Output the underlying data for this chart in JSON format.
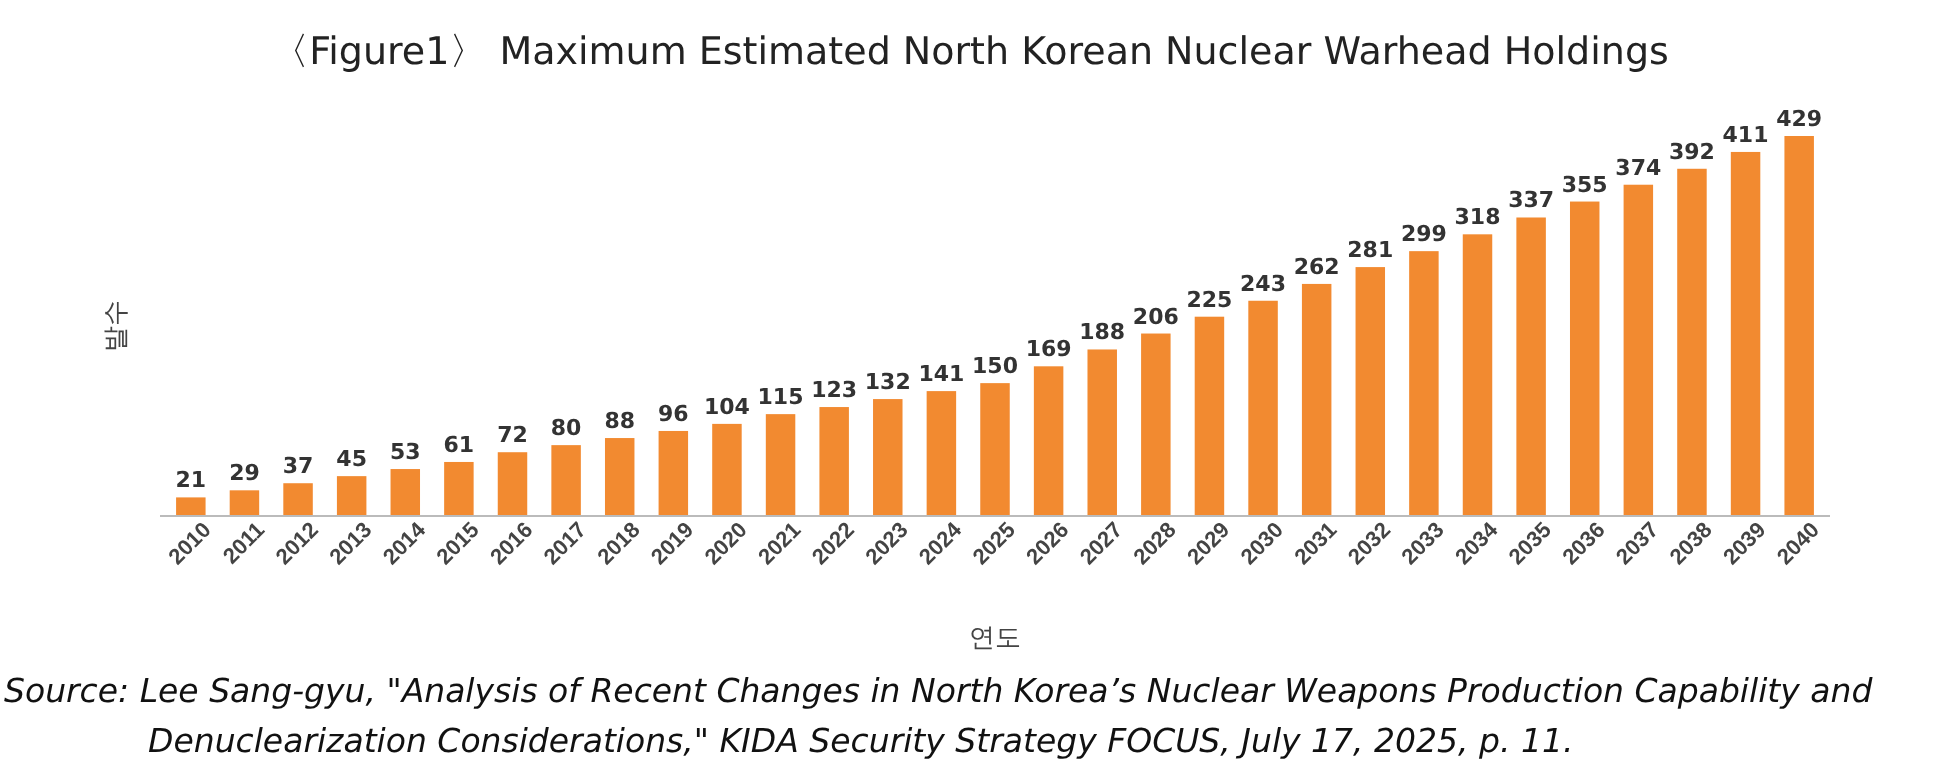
{
  "chart_data": {
    "type": "bar",
    "title": "〈Figure1〉 Maximum Estimated North Korean Nuclear Warhead Holdings",
    "xlabel": "연도",
    "ylabel": "발수",
    "categories": [
      "2010",
      "2011",
      "2012",
      "2013",
      "2014",
      "2015",
      "2016",
      "2017",
      "2018",
      "2019",
      "2020",
      "2021",
      "2022",
      "2023",
      "2024",
      "2025",
      "2026",
      "2027",
      "2028",
      "2029",
      "2030",
      "2031",
      "2032",
      "2033",
      "2034",
      "2035",
      "2036",
      "2037",
      "2038",
      "2039",
      "2040"
    ],
    "values": [
      21,
      29,
      37,
      45,
      53,
      61,
      72,
      80,
      88,
      96,
      104,
      115,
      123,
      132,
      141,
      150,
      169,
      188,
      206,
      225,
      243,
      262,
      281,
      299,
      318,
      337,
      355,
      374,
      392,
      411,
      429
    ],
    "color": "#f28a30",
    "data_labels": true,
    "annotations": [
      "Source: Lee Sang-gyu, \"Analysis of Recent Changes in North Korea’s Nuclear Weapons Production Capability and Denuclearization Considerations,\" KIDA Security Strategy FOCUS, July 17, 2025, p. 11."
    ]
  }
}
